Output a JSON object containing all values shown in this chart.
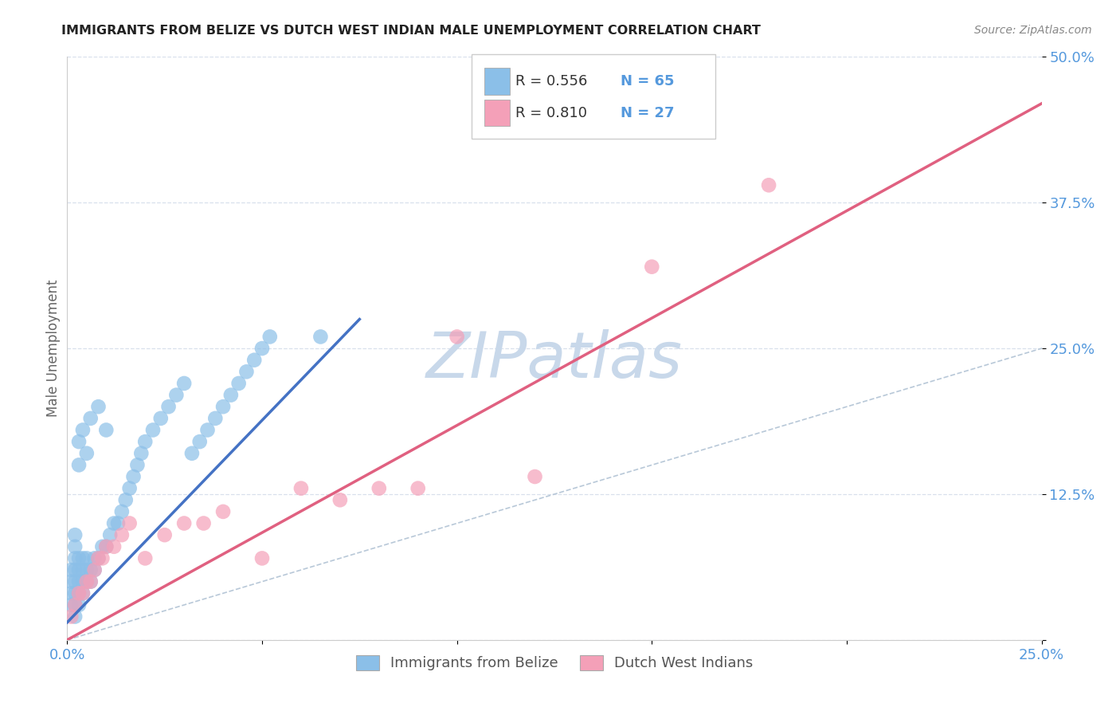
{
  "title": "IMMIGRANTS FROM BELIZE VS DUTCH WEST INDIAN MALE UNEMPLOYMENT CORRELATION CHART",
  "source": "Source: ZipAtlas.com",
  "ylabel": "Male Unemployment",
  "xlim": [
    0.0,
    0.25
  ],
  "ylim": [
    0.0,
    0.5
  ],
  "xtick_positions": [
    0.0,
    0.05,
    0.1,
    0.15,
    0.2,
    0.25
  ],
  "xticklabels": [
    "0.0%",
    "",
    "",
    "",
    "",
    "25.0%"
  ],
  "ytick_positions": [
    0.0,
    0.125,
    0.25,
    0.375,
    0.5
  ],
  "yticklabels": [
    "",
    "12.5%",
    "25.0%",
    "37.5%",
    "50.0%"
  ],
  "series1_color": "#8bbfe8",
  "series2_color": "#f4a0b8",
  "line1_color": "#4472c4",
  "line2_color": "#e06080",
  "diagonal_color": "#b8c8d8",
  "watermark": "ZIPatlas",
  "watermark_color": "#c8d8ea",
  "tick_color": "#5599dd",
  "legend_r1": "R = 0.556",
  "legend_n1": "N = 65",
  "legend_r2": "R = 0.810",
  "legend_n2": "N = 27",
  "belize_x": [
    0.001,
    0.001,
    0.001,
    0.001,
    0.002,
    0.002,
    0.002,
    0.002,
    0.002,
    0.002,
    0.002,
    0.002,
    0.003,
    0.003,
    0.003,
    0.003,
    0.003,
    0.003,
    0.003,
    0.004,
    0.004,
    0.004,
    0.004,
    0.004,
    0.005,
    0.005,
    0.005,
    0.005,
    0.006,
    0.006,
    0.006,
    0.007,
    0.007,
    0.008,
    0.008,
    0.009,
    0.01,
    0.01,
    0.011,
    0.012,
    0.013,
    0.014,
    0.015,
    0.016,
    0.017,
    0.018,
    0.019,
    0.02,
    0.022,
    0.024,
    0.026,
    0.028,
    0.03,
    0.032,
    0.034,
    0.036,
    0.038,
    0.04,
    0.042,
    0.044,
    0.046,
    0.048,
    0.05,
    0.052,
    0.065
  ],
  "belize_y": [
    0.03,
    0.04,
    0.05,
    0.06,
    0.02,
    0.03,
    0.04,
    0.05,
    0.06,
    0.07,
    0.08,
    0.09,
    0.03,
    0.04,
    0.05,
    0.06,
    0.07,
    0.15,
    0.17,
    0.04,
    0.05,
    0.06,
    0.07,
    0.18,
    0.05,
    0.06,
    0.07,
    0.16,
    0.05,
    0.06,
    0.19,
    0.06,
    0.07,
    0.07,
    0.2,
    0.08,
    0.08,
    0.18,
    0.09,
    0.1,
    0.1,
    0.11,
    0.12,
    0.13,
    0.14,
    0.15,
    0.16,
    0.17,
    0.18,
    0.19,
    0.2,
    0.21,
    0.22,
    0.16,
    0.17,
    0.18,
    0.19,
    0.2,
    0.21,
    0.22,
    0.23,
    0.24,
    0.25,
    0.26,
    0.26
  ],
  "dutch_x": [
    0.001,
    0.002,
    0.003,
    0.004,
    0.005,
    0.006,
    0.007,
    0.008,
    0.009,
    0.01,
    0.012,
    0.014,
    0.016,
    0.02,
    0.025,
    0.03,
    0.035,
    0.04,
    0.05,
    0.06,
    0.07,
    0.08,
    0.09,
    0.1,
    0.12,
    0.15,
    0.18
  ],
  "dutch_y": [
    0.02,
    0.03,
    0.04,
    0.04,
    0.05,
    0.05,
    0.06,
    0.07,
    0.07,
    0.08,
    0.08,
    0.09,
    0.1,
    0.07,
    0.09,
    0.1,
    0.1,
    0.11,
    0.07,
    0.13,
    0.12,
    0.13,
    0.13,
    0.26,
    0.14,
    0.32,
    0.39
  ],
  "belize_line_x": [
    0.0,
    0.075
  ],
  "belize_line_y": [
    0.015,
    0.275
  ],
  "dutch_line_x": [
    0.0,
    0.25
  ],
  "dutch_line_y": [
    0.0,
    0.46
  ]
}
